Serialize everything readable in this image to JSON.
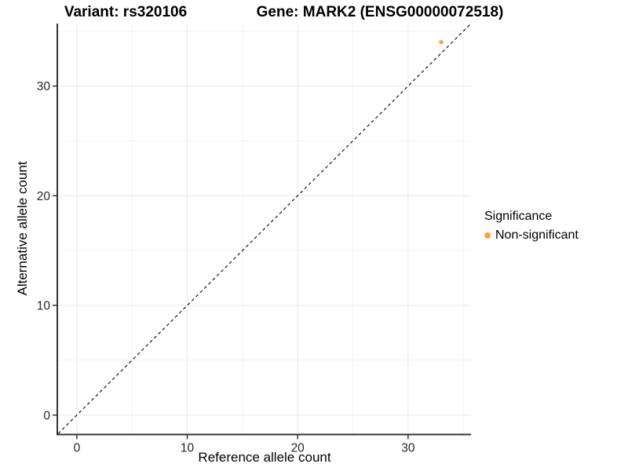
{
  "chart_data": {
    "type": "scatter",
    "title_variant": "Variant: rs320106",
    "title_gene": "Gene: MARK2 (ENSG00000072518)",
    "xlabel": "Reference allele count",
    "ylabel": "Alternative allele count",
    "xlim": [
      -1.7,
      35.7
    ],
    "ylim": [
      -1.7,
      35.7
    ],
    "x_major_ticks": [
      0,
      10,
      20,
      30
    ],
    "y_major_ticks": [
      0,
      10,
      20,
      30
    ],
    "x_minor_ticks": [
      5,
      15,
      25,
      35
    ],
    "y_minor_ticks": [
      5,
      15,
      25,
      35
    ],
    "grid": "major and minor gridlines, white panel background",
    "identity_line": {
      "equation": "y = x",
      "slope": 1,
      "intercept": 0,
      "style": "dashed",
      "color": "#000000"
    },
    "series": [
      {
        "name": "Non-significant",
        "color": "#FAA43B",
        "points": [
          {
            "x": 33,
            "y": 34
          }
        ]
      }
    ],
    "legend": {
      "title": "Significance",
      "position": "right",
      "items": [
        {
          "label": "Non-significant",
          "color": "#FAA43B"
        }
      ]
    },
    "style": {
      "major_grid_color": "#E8E8E8",
      "minor_grid_color": "#F2F2F2",
      "axis_line_color": "#333333",
      "tick_label_color": "#262626",
      "point_radius": 2.8
    }
  }
}
